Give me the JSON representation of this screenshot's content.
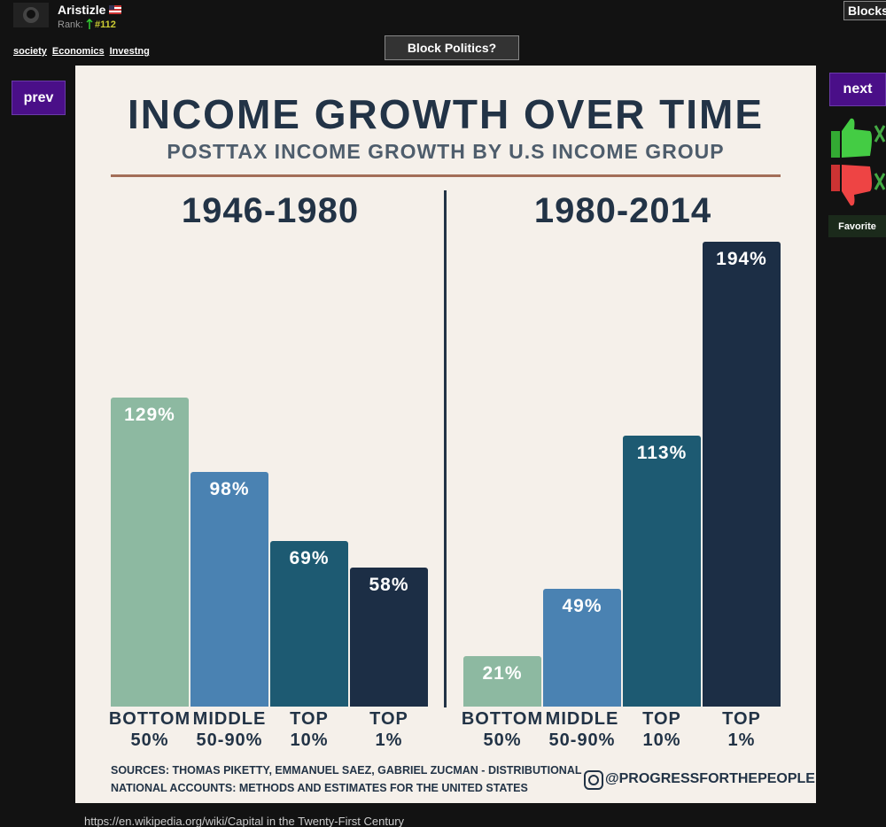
{
  "user": {
    "name": "Aristizle",
    "rank_label": "Rank:",
    "rank": "#112"
  },
  "tags": [
    "society",
    "Economics",
    "Investng"
  ],
  "buttons": {
    "block": "Block Politics?",
    "blocks": "Blocks",
    "prev": "prev",
    "next": "next",
    "favorite": "Favorite"
  },
  "infographic": {
    "title": "INCOME GROWTH OVER TIME",
    "subtitle": "POSTTAX INCOME GROWTH BY U.S INCOME GROUP",
    "sources": [
      "SOURCES: THOMAS PIKETTY, EMMANUEL SAEZ, GABRIEL ZUCMAN - DISTRIBUTIONAL",
      "NATIONAL ACCOUNTS: METHODS AND ESTIMATES FOR THE UNITED STATES"
    ],
    "credit": "@PROGRESSFORTHEPEOPLE"
  },
  "chart_data": [
    {
      "type": "bar",
      "title": "1946-1980",
      "categories": [
        "BOTTOM\n50%",
        "MIDDLE\n50-90%",
        "TOP\n10%",
        "TOP\n1%"
      ],
      "values": [
        129,
        98,
        69,
        58
      ],
      "value_labels": [
        "129%",
        "98%",
        "69%",
        "58%"
      ],
      "colors": [
        "#8db9a1",
        "#4a82b2",
        "#1d5a72",
        "#1c2e45"
      ]
    },
    {
      "type": "bar",
      "title": "1980-2014",
      "categories": [
        "BOTTOM\n50%",
        "MIDDLE\n50-90%",
        "TOP\n10%",
        "TOP\n1%"
      ],
      "values": [
        21,
        49,
        113,
        194
      ],
      "value_labels": [
        "21%",
        "49%",
        "113%",
        "194%"
      ],
      "colors": [
        "#8db9a1",
        "#4a82b2",
        "#1d5a72",
        "#1c2e45"
      ]
    }
  ],
  "source_url": "https://en.wikipedia.org/wiki/Capital in the Twenty-First Century"
}
